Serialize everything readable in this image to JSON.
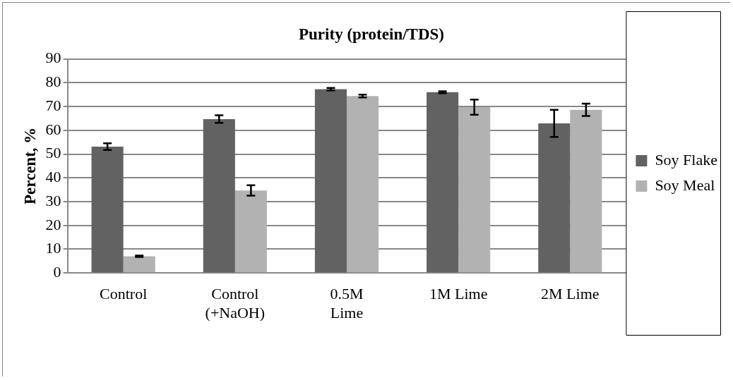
{
  "chart_data": {
    "type": "bar",
    "title": "Purity (protein/TDS)",
    "ylabel": "Percent, %",
    "categories": [
      "Control",
      "Control (+NaOH)",
      "0.5M Lime",
      "1M Lime",
      "2M Lime"
    ],
    "series": [
      {
        "name": "Soy Flake",
        "color": "#626262",
        "values": [
          53.1,
          64.7,
          77.3,
          76.0,
          62.9
        ],
        "errors": [
          1.4,
          1.6,
          0.5,
          0.4,
          5.7
        ]
      },
      {
        "name": "Soy Meal",
        "color": "#b2b2b2",
        "values": [
          7.0,
          34.7,
          74.4,
          69.7,
          68.6
        ],
        "errors": [
          0.3,
          2.2,
          0.6,
          3.2,
          2.6
        ]
      }
    ],
    "ylim": [
      0,
      90
    ],
    "yticks": [
      0,
      10,
      20,
      30,
      40,
      50,
      60,
      70,
      80,
      90
    ],
    "grid": "y",
    "legend": "right"
  }
}
